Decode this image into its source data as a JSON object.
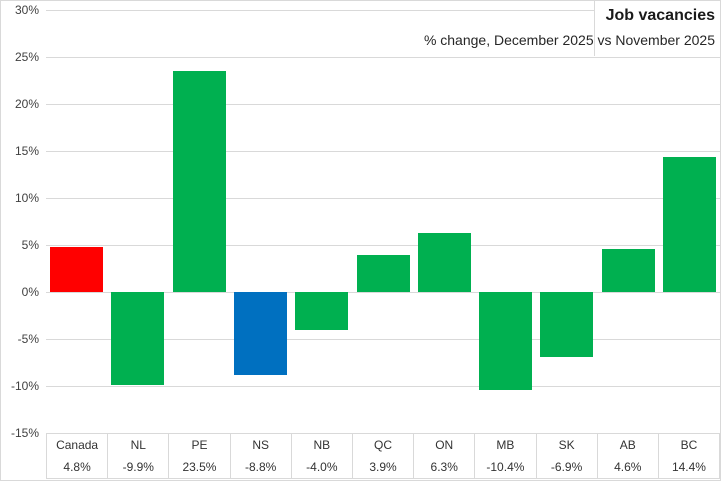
{
  "title": "Job vacancies",
  "subtitle": "% change, December 2025 vs November 2025",
  "chart_data": {
    "type": "bar",
    "title": "Job vacancies",
    "subtitle": "% change, December 2025 vs November 2025",
    "categories": [
      "Canada",
      "NL",
      "PE",
      "NS",
      "NB",
      "QC",
      "ON",
      "MB",
      "SK",
      "AB",
      "BC"
    ],
    "values": [
      4.8,
      -9.9,
      23.5,
      -8.8,
      -4.0,
      3.9,
      6.3,
      -10.4,
      -6.9,
      4.6,
      14.4
    ],
    "value_labels": [
      "4.8%",
      "-9.9%",
      "23.5%",
      "-8.8%",
      "-4.0%",
      "3.9%",
      "6.3%",
      "-10.4%",
      "-6.9%",
      "4.6%",
      "14.4%"
    ],
    "bar_colors": [
      "#ff0000",
      "#00b050",
      "#00b050",
      "#0070c0",
      "#00b050",
      "#00b050",
      "#00b050",
      "#00b050",
      "#00b050",
      "#00b050",
      "#00b050"
    ],
    "ylim": [
      -15,
      30
    ],
    "ytick_step": 5,
    "ytick_labels": [
      "30%",
      "25%",
      "20%",
      "15%",
      "10%",
      "5%",
      "0%",
      "-5%",
      "-10%",
      "-15%"
    ],
    "grid": "horizontal",
    "legend": "none",
    "data_table_shown": true,
    "colors": {
      "positive_default": "#00b050",
      "canada_highlight": "#ff0000",
      "ns_highlight": "#0070c0",
      "gridline": "#d9d9d9",
      "axis_text": "#404040"
    }
  }
}
